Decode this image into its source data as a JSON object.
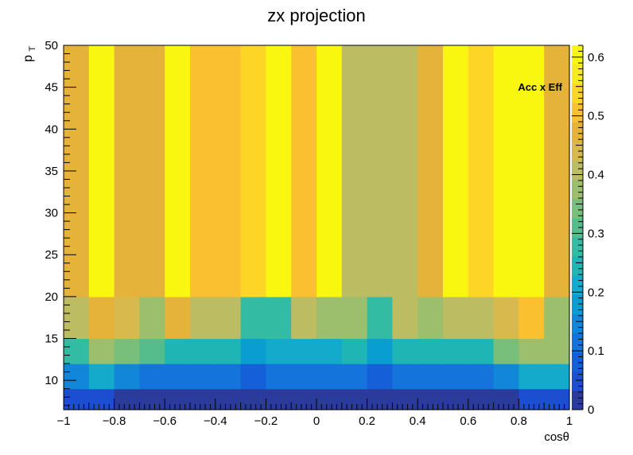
{
  "chart_data": {
    "type": "heatmap",
    "title": "zx projection",
    "xlabel": "cosθ",
    "ylabel_main": "p",
    "ylabel_sub": "T",
    "annotation": "Acc x Eff",
    "xlim": [
      -1,
      1
    ],
    "ylim": [
      6.5,
      50
    ],
    "zlim": [
      0,
      0.62
    ],
    "x_edges": [
      -1,
      -0.9,
      -0.8,
      -0.7,
      -0.6,
      -0.5,
      -0.4,
      -0.3,
      -0.2,
      -0.1,
      0,
      0.1,
      0.2,
      0.3,
      0.4,
      0.5,
      0.6,
      0.7,
      0.8,
      0.9,
      1
    ],
    "y_edges": [
      6.5,
      9,
      12,
      15,
      20,
      50
    ],
    "z": [
      [
        0.06,
        0.06,
        0.02,
        0.02,
        0.02,
        0.02,
        0.02,
        0.02,
        0.02,
        0.02,
        0.02,
        0.02,
        0.02,
        0.02,
        0.02,
        0.02,
        0.02,
        0.02,
        0.06,
        0.06
      ],
      [
        0.15,
        0.22,
        0.15,
        0.13,
        0.11,
        0.11,
        0.11,
        0.08,
        0.11,
        0.11,
        0.11,
        0.11,
        0.08,
        0.11,
        0.11,
        0.11,
        0.13,
        0.15,
        0.22,
        0.22
      ],
      [
        0.27,
        0.38,
        0.34,
        0.3,
        0.25,
        0.25,
        0.25,
        0.18,
        0.22,
        0.22,
        0.2,
        0.25,
        0.18,
        0.25,
        0.25,
        0.25,
        0.25,
        0.34,
        0.38,
        0.38
      ],
      [
        0.4,
        0.46,
        0.43,
        0.36,
        0.46,
        0.4,
        0.4,
        0.28,
        0.28,
        0.4,
        0.38,
        0.38,
        0.28,
        0.4,
        0.36,
        0.4,
        0.4,
        0.43,
        0.5,
        0.36
      ],
      [
        0.48,
        0.62,
        0.48,
        0.46,
        0.62,
        0.52,
        0.5,
        0.55,
        0.59,
        0.52,
        0.59,
        0.4,
        0.4,
        0.4,
        0.46,
        0.59,
        0.55,
        0.62,
        0.62,
        0.48
      ]
    ],
    "x_ticks": [
      -1,
      -0.8,
      -0.6,
      -0.4,
      -0.2,
      0,
      0.2,
      0.4,
      0.6,
      0.8,
      1
    ],
    "x_tick_labels": [
      "−1",
      "−0.8",
      "−0.6",
      "−0.4",
      "−0.2",
      "0",
      "0.2",
      "0.4",
      "0.6",
      "0.8",
      "1"
    ],
    "y_ticks": [
      10,
      15,
      20,
      25,
      30,
      35,
      40,
      45,
      50
    ],
    "y_tick_labels": [
      "10",
      "15",
      "20",
      "25",
      "30",
      "35",
      "40",
      "45",
      "50"
    ],
    "z_ticks": [
      0,
      0.1,
      0.2,
      0.3,
      0.4,
      0.5,
      0.6
    ],
    "z_tick_labels": [
      "0",
      "0.1",
      "0.2",
      "0.3",
      "0.4",
      "0.5",
      "0.6"
    ],
    "palette": [
      "#2a3b9c",
      "#1b4ed0",
      "#1560d8",
      "#1474db",
      "#1287d9",
      "#0a9dd1",
      "#13aacb",
      "#1fb5b5",
      "#33bba4",
      "#55bd8b",
      "#77bf7a",
      "#9cbf6d",
      "#bcbc63",
      "#d7b94e",
      "#e6b33a",
      "#fbc030",
      "#fcd526",
      "#f7ea1f",
      "#f9f70f"
    ]
  }
}
